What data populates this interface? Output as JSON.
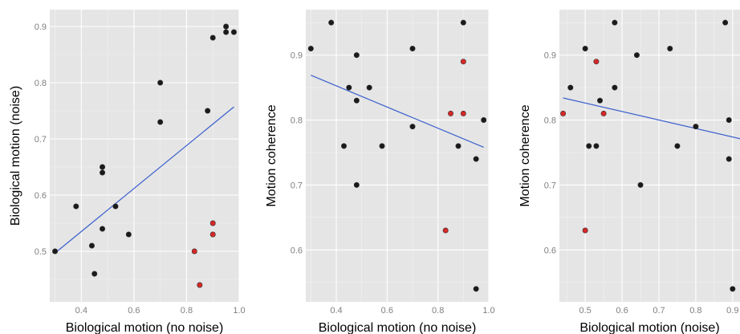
{
  "colors": {
    "panel_bg": "#e5e5e5",
    "grid_major": "#ffffff",
    "grid_minor": "#f2f2f2",
    "point_default": "#1a1a1a",
    "point_highlight": "#d62728",
    "regression_line": "#3a5fcd",
    "tick_text": "#7f7f7f"
  },
  "chart_data": [
    {
      "type": "scatter",
      "xlabel": "Biological motion (no noise)",
      "ylabel": "Biological motion (noise)",
      "xlim": [
        0.28,
        1.0
      ],
      "ylim": [
        0.41,
        0.93
      ],
      "xticks": [
        0.4,
        0.6,
        0.8,
        1.0
      ],
      "xtick_labels": [
        "0.4",
        "0.6",
        "0.8",
        "1.0"
      ],
      "yticks": [
        0.5,
        0.6,
        0.7,
        0.8,
        0.9
      ],
      "ytick_labels": [
        "0.5",
        "0.6",
        "0.7",
        "0.8",
        "0.9"
      ],
      "regression_line": {
        "x": [
          0.3,
          0.98
        ],
        "y": [
          0.497,
          0.757
        ]
      },
      "points": [
        {
          "x": 0.3,
          "y": 0.5,
          "highlight": false
        },
        {
          "x": 0.38,
          "y": 0.58,
          "highlight": false
        },
        {
          "x": 0.44,
          "y": 0.51,
          "highlight": false
        },
        {
          "x": 0.45,
          "y": 0.46,
          "highlight": false
        },
        {
          "x": 0.48,
          "y": 0.65,
          "highlight": false
        },
        {
          "x": 0.48,
          "y": 0.64,
          "highlight": false
        },
        {
          "x": 0.48,
          "y": 0.54,
          "highlight": false
        },
        {
          "x": 0.53,
          "y": 0.58,
          "highlight": false
        },
        {
          "x": 0.58,
          "y": 0.53,
          "highlight": false
        },
        {
          "x": 0.7,
          "y": 0.8,
          "highlight": false
        },
        {
          "x": 0.7,
          "y": 0.73,
          "highlight": false
        },
        {
          "x": 0.88,
          "y": 0.75,
          "highlight": false
        },
        {
          "x": 0.9,
          "y": 0.88,
          "highlight": false
        },
        {
          "x": 0.95,
          "y": 0.9,
          "highlight": false
        },
        {
          "x": 0.95,
          "y": 0.89,
          "highlight": false
        },
        {
          "x": 0.98,
          "y": 0.89,
          "highlight": false
        },
        {
          "x": 0.83,
          "y": 0.5,
          "highlight": true
        },
        {
          "x": 0.85,
          "y": 0.44,
          "highlight": true
        },
        {
          "x": 0.9,
          "y": 0.55,
          "highlight": true
        },
        {
          "x": 0.9,
          "y": 0.53,
          "highlight": true
        }
      ]
    },
    {
      "type": "scatter",
      "xlabel": "Biological motion (no noise)",
      "ylabel": "Motion coherence",
      "xlim": [
        0.28,
        1.0
      ],
      "ylim": [
        0.52,
        0.97
      ],
      "xticks": [
        0.4,
        0.6,
        0.8,
        1.0
      ],
      "xtick_labels": [
        "0.4",
        "0.6",
        "0.8",
        "1.0"
      ],
      "yticks": [
        0.6,
        0.7,
        0.8,
        0.9
      ],
      "ytick_labels": [
        "0.6",
        "0.7",
        "0.8",
        "0.9"
      ],
      "regression_line": {
        "x": [
          0.3,
          0.98
        ],
        "y": [
          0.869,
          0.758
        ]
      },
      "points": [
        {
          "x": 0.3,
          "y": 0.91,
          "highlight": false
        },
        {
          "x": 0.38,
          "y": 0.95,
          "highlight": false
        },
        {
          "x": 0.43,
          "y": 0.76,
          "highlight": false
        },
        {
          "x": 0.45,
          "y": 0.85,
          "highlight": false
        },
        {
          "x": 0.48,
          "y": 0.9,
          "highlight": false
        },
        {
          "x": 0.48,
          "y": 0.83,
          "highlight": false
        },
        {
          "x": 0.48,
          "y": 0.7,
          "highlight": false
        },
        {
          "x": 0.53,
          "y": 0.85,
          "highlight": false
        },
        {
          "x": 0.58,
          "y": 0.76,
          "highlight": false
        },
        {
          "x": 0.7,
          "y": 0.91,
          "highlight": false
        },
        {
          "x": 0.7,
          "y": 0.79,
          "highlight": false
        },
        {
          "x": 0.88,
          "y": 0.76,
          "highlight": false
        },
        {
          "x": 0.9,
          "y": 0.95,
          "highlight": false
        },
        {
          "x": 0.95,
          "y": 0.74,
          "highlight": false
        },
        {
          "x": 0.95,
          "y": 0.54,
          "highlight": false
        },
        {
          "x": 0.98,
          "y": 0.8,
          "highlight": false
        },
        {
          "x": 0.83,
          "y": 0.63,
          "highlight": true
        },
        {
          "x": 0.85,
          "y": 0.81,
          "highlight": true
        },
        {
          "x": 0.9,
          "y": 0.89,
          "highlight": true
        },
        {
          "x": 0.9,
          "y": 0.81,
          "highlight": true
        }
      ]
    },
    {
      "type": "scatter",
      "xlabel": "Biological motion (noise)",
      "ylabel": "Motion coherence",
      "xlim": [
        0.43,
        0.92
      ],
      "ylim": [
        0.52,
        0.97
      ],
      "xticks": [
        0.5,
        0.6,
        0.7,
        0.8,
        0.9
      ],
      "xtick_labels": [
        "0.5",
        "0.6",
        "0.7",
        "0.8",
        "0.9"
      ],
      "yticks": [
        0.6,
        0.7,
        0.8,
        0.9
      ],
      "ytick_labels": [
        "0.6",
        "0.7",
        "0.8",
        "0.9"
      ],
      "regression_line": {
        "x": [
          0.44,
          0.93
        ],
        "y": [
          0.834,
          0.77
        ]
      },
      "points": [
        {
          "x": 0.46,
          "y": 0.85,
          "highlight": false
        },
        {
          "x": 0.5,
          "y": 0.91,
          "highlight": false
        },
        {
          "x": 0.51,
          "y": 0.76,
          "highlight": false
        },
        {
          "x": 0.53,
          "y": 0.76,
          "highlight": false
        },
        {
          "x": 0.54,
          "y": 0.83,
          "highlight": false
        },
        {
          "x": 0.58,
          "y": 0.95,
          "highlight": false
        },
        {
          "x": 0.58,
          "y": 0.85,
          "highlight": false
        },
        {
          "x": 0.64,
          "y": 0.9,
          "highlight": false
        },
        {
          "x": 0.65,
          "y": 0.7,
          "highlight": false
        },
        {
          "x": 0.73,
          "y": 0.91,
          "highlight": false
        },
        {
          "x": 0.75,
          "y": 0.76,
          "highlight": false
        },
        {
          "x": 0.8,
          "y": 0.79,
          "highlight": false
        },
        {
          "x": 0.88,
          "y": 0.95,
          "highlight": false
        },
        {
          "x": 0.89,
          "y": 0.8,
          "highlight": false
        },
        {
          "x": 0.89,
          "y": 0.74,
          "highlight": false
        },
        {
          "x": 0.9,
          "y": 0.54,
          "highlight": false
        },
        {
          "x": 0.44,
          "y": 0.81,
          "highlight": true
        },
        {
          "x": 0.5,
          "y": 0.63,
          "highlight": true
        },
        {
          "x": 0.53,
          "y": 0.89,
          "highlight": true
        },
        {
          "x": 0.55,
          "y": 0.81,
          "highlight": true
        }
      ]
    }
  ]
}
